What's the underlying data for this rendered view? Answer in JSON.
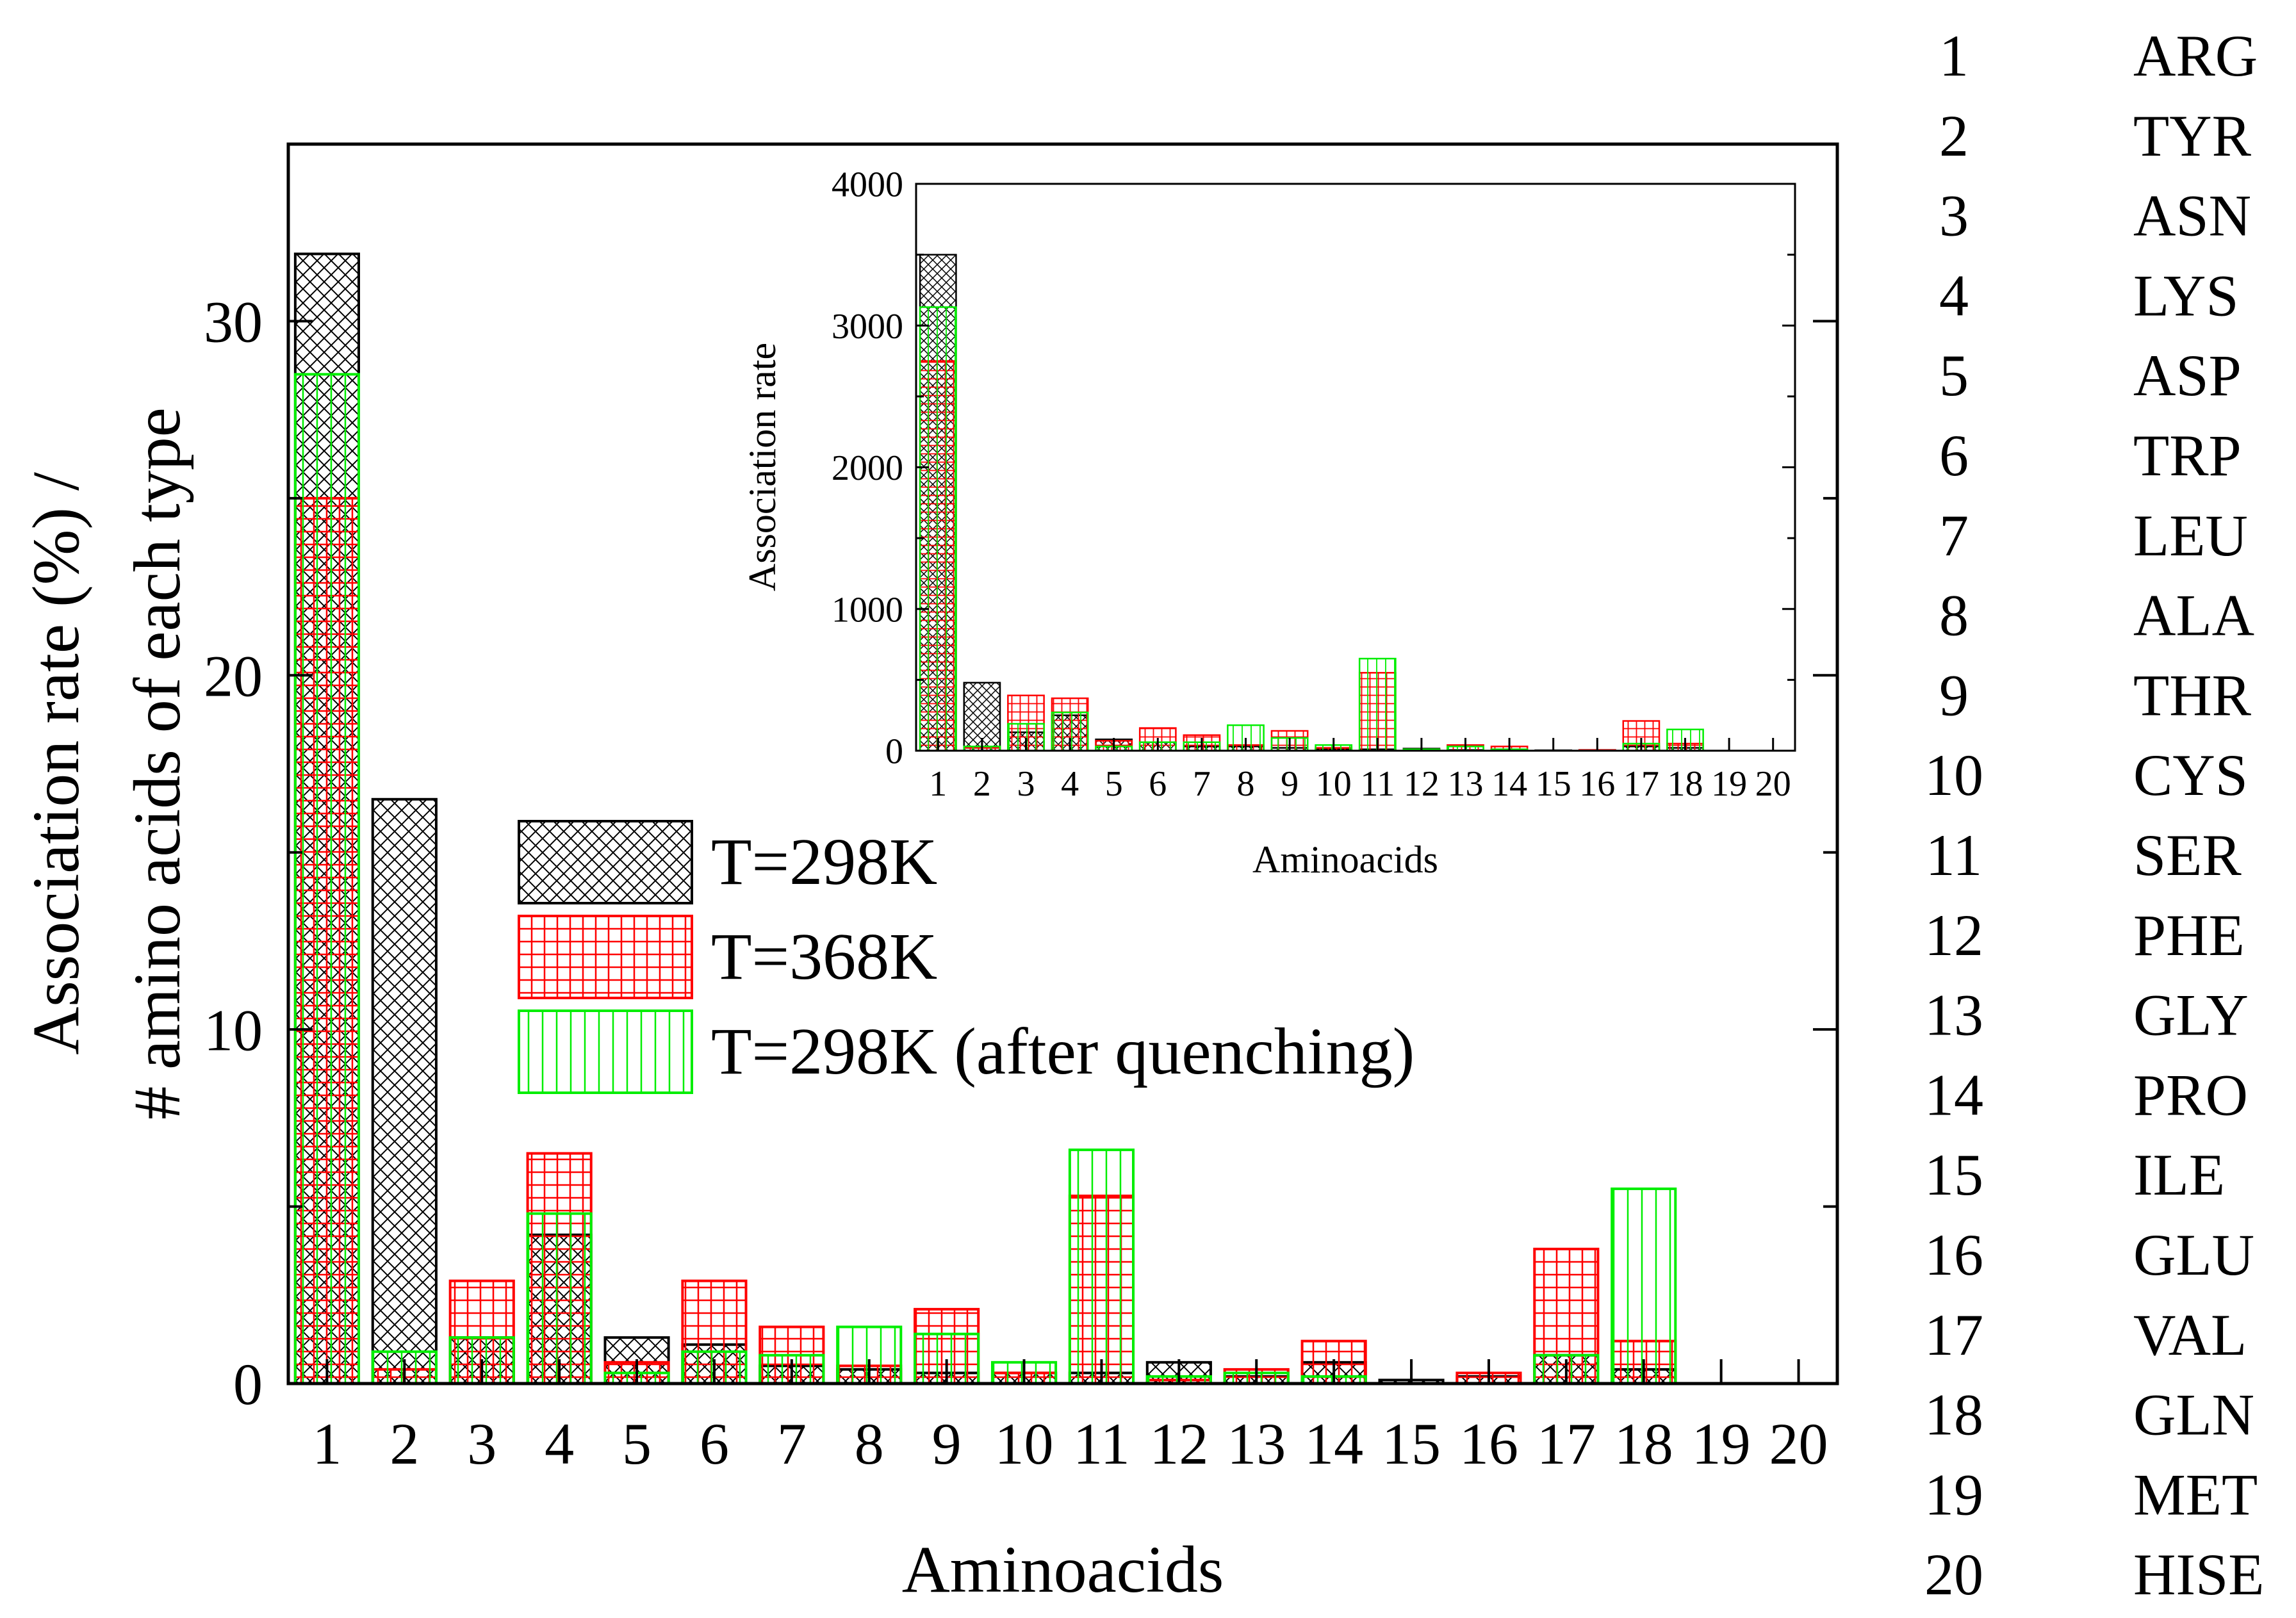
{
  "colors": {
    "series_298": "#000000",
    "series_368": "#ff0000",
    "series_quench": "#00ee00"
  },
  "chart_data": [
    {
      "id": "main",
      "type": "bar",
      "xlabel": "Aminoacids",
      "ylabel_line1": "Association rate (%) /",
      "ylabel_line2": "# amino acids of each type",
      "ylim": [
        0,
        35
      ],
      "yticks": [
        0,
        10,
        20,
        30
      ],
      "categories": [
        "1",
        "2",
        "3",
        "4",
        "5",
        "6",
        "7",
        "8",
        "9",
        "10",
        "11",
        "12",
        "13",
        "14",
        "15",
        "16",
        "17",
        "18",
        "19",
        "20"
      ],
      "series": [
        {
          "name": "T=298K",
          "pattern": "crosshatch",
          "values": [
            31.9,
            16.5,
            1.3,
            4.2,
            1.3,
            1.1,
            0.5,
            0.4,
            0.3,
            0.3,
            0.3,
            0.6,
            0.2,
            0.6,
            0.1,
            0.2,
            0.8,
            0.4,
            0,
            0
          ]
        },
        {
          "name": "T=368K",
          "pattern": "grid",
          "values": [
            25.0,
            0.4,
            2.9,
            6.5,
            0.6,
            2.9,
            1.6,
            0.5,
            2.1,
            0.3,
            5.3,
            0.1,
            0.4,
            1.2,
            0,
            0.3,
            3.8,
            1.2,
            0,
            0
          ]
        },
        {
          "name": "T=298K (after quenching)",
          "pattern": "vertical",
          "values": [
            28.5,
            0.9,
            1.3,
            4.8,
            0.3,
            0.9,
            0.8,
            1.6,
            1.4,
            0.6,
            6.6,
            0.2,
            0.3,
            0.2,
            0,
            0,
            0.8,
            5.5,
            0,
            0
          ]
        }
      ],
      "legend": [
        "T=298K",
        "T=368K",
        "T=298K (after quenching)"
      ]
    },
    {
      "id": "inset",
      "type": "bar",
      "xlabel": "Aminoacids",
      "ylabel": "Association rate",
      "ylim": [
        0,
        4000
      ],
      "yticks": [
        0,
        1000,
        2000,
        3000,
        4000
      ],
      "categories": [
        "1",
        "2",
        "3",
        "4",
        "5",
        "6",
        "7",
        "8",
        "9",
        "10",
        "11",
        "12",
        "13",
        "14",
        "15",
        "16",
        "17",
        "18",
        "19",
        "20"
      ],
      "series": [
        {
          "name": "T=298K",
          "pattern": "crosshatch",
          "values": [
            3500,
            480,
            130,
            250,
            80,
            60,
            30,
            30,
            20,
            10,
            10,
            15,
            5,
            10,
            3,
            5,
            30,
            20,
            0,
            0
          ]
        },
        {
          "name": "T=368K",
          "pattern": "grid",
          "values": [
            2750,
            20,
            390,
            370,
            70,
            160,
            110,
            40,
            140,
            20,
            550,
            10,
            40,
            30,
            0,
            5,
            210,
            50,
            0,
            0
          ]
        },
        {
          "name": "T=298K (after quenching)",
          "pattern": "vertical",
          "values": [
            3130,
            30,
            190,
            270,
            30,
            60,
            60,
            180,
            90,
            40,
            650,
            10,
            30,
            10,
            0,
            0,
            50,
            150,
            0,
            0
          ]
        }
      ]
    }
  ],
  "amino_acid_key": [
    {
      "num": "1",
      "name": "ARG"
    },
    {
      "num": "2",
      "name": "TYR"
    },
    {
      "num": "3",
      "name": "ASN"
    },
    {
      "num": "4",
      "name": "LYS"
    },
    {
      "num": "5",
      "name": "ASP"
    },
    {
      "num": "6",
      "name": "TRP"
    },
    {
      "num": "7",
      "name": "LEU"
    },
    {
      "num": "8",
      "name": "ALA"
    },
    {
      "num": "9",
      "name": "THR"
    },
    {
      "num": "10",
      "name": "CYS"
    },
    {
      "num": "11",
      "name": "SER"
    },
    {
      "num": "12",
      "name": "PHE"
    },
    {
      "num": "13",
      "name": "GLY"
    },
    {
      "num": "14",
      "name": "PRO"
    },
    {
      "num": "15",
      "name": "ILE"
    },
    {
      "num": "16",
      "name": "GLU"
    },
    {
      "num": "17",
      "name": "VAL"
    },
    {
      "num": "18",
      "name": "GLN"
    },
    {
      "num": "19",
      "name": "MET"
    },
    {
      "num": "20",
      "name": "HISE"
    }
  ]
}
